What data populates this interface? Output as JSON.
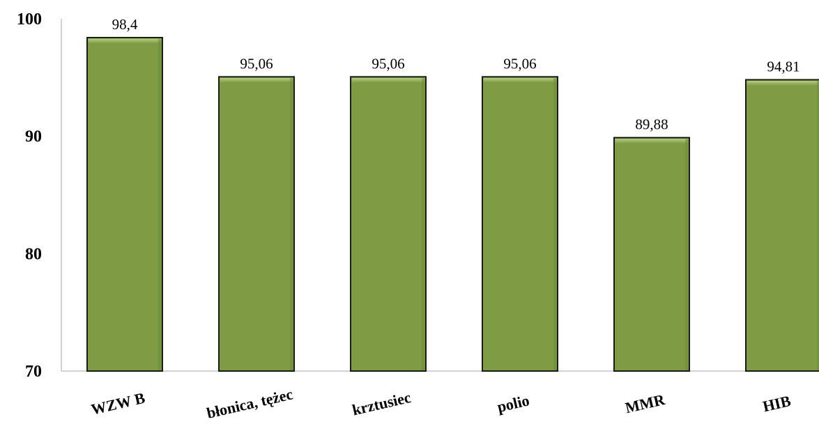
{
  "chart_data": {
    "type": "bar",
    "categories": [
      "WZW B",
      "błonica, tężec",
      "krztusiec",
      "polio",
      "MMR",
      "HIB"
    ],
    "values": [
      98.4,
      95.06,
      95.06,
      95.06,
      89.88,
      94.81
    ],
    "data_labels": [
      "98,4",
      "95,06",
      "95,06",
      "95,06",
      "89,88",
      "94,81"
    ],
    "yticks": [
      70,
      80,
      90,
      100
    ],
    "ylim": [
      70,
      100
    ],
    "grid": false,
    "bar_color": "#7f9c45",
    "bar_edge_color": "#1a1a1a"
  }
}
